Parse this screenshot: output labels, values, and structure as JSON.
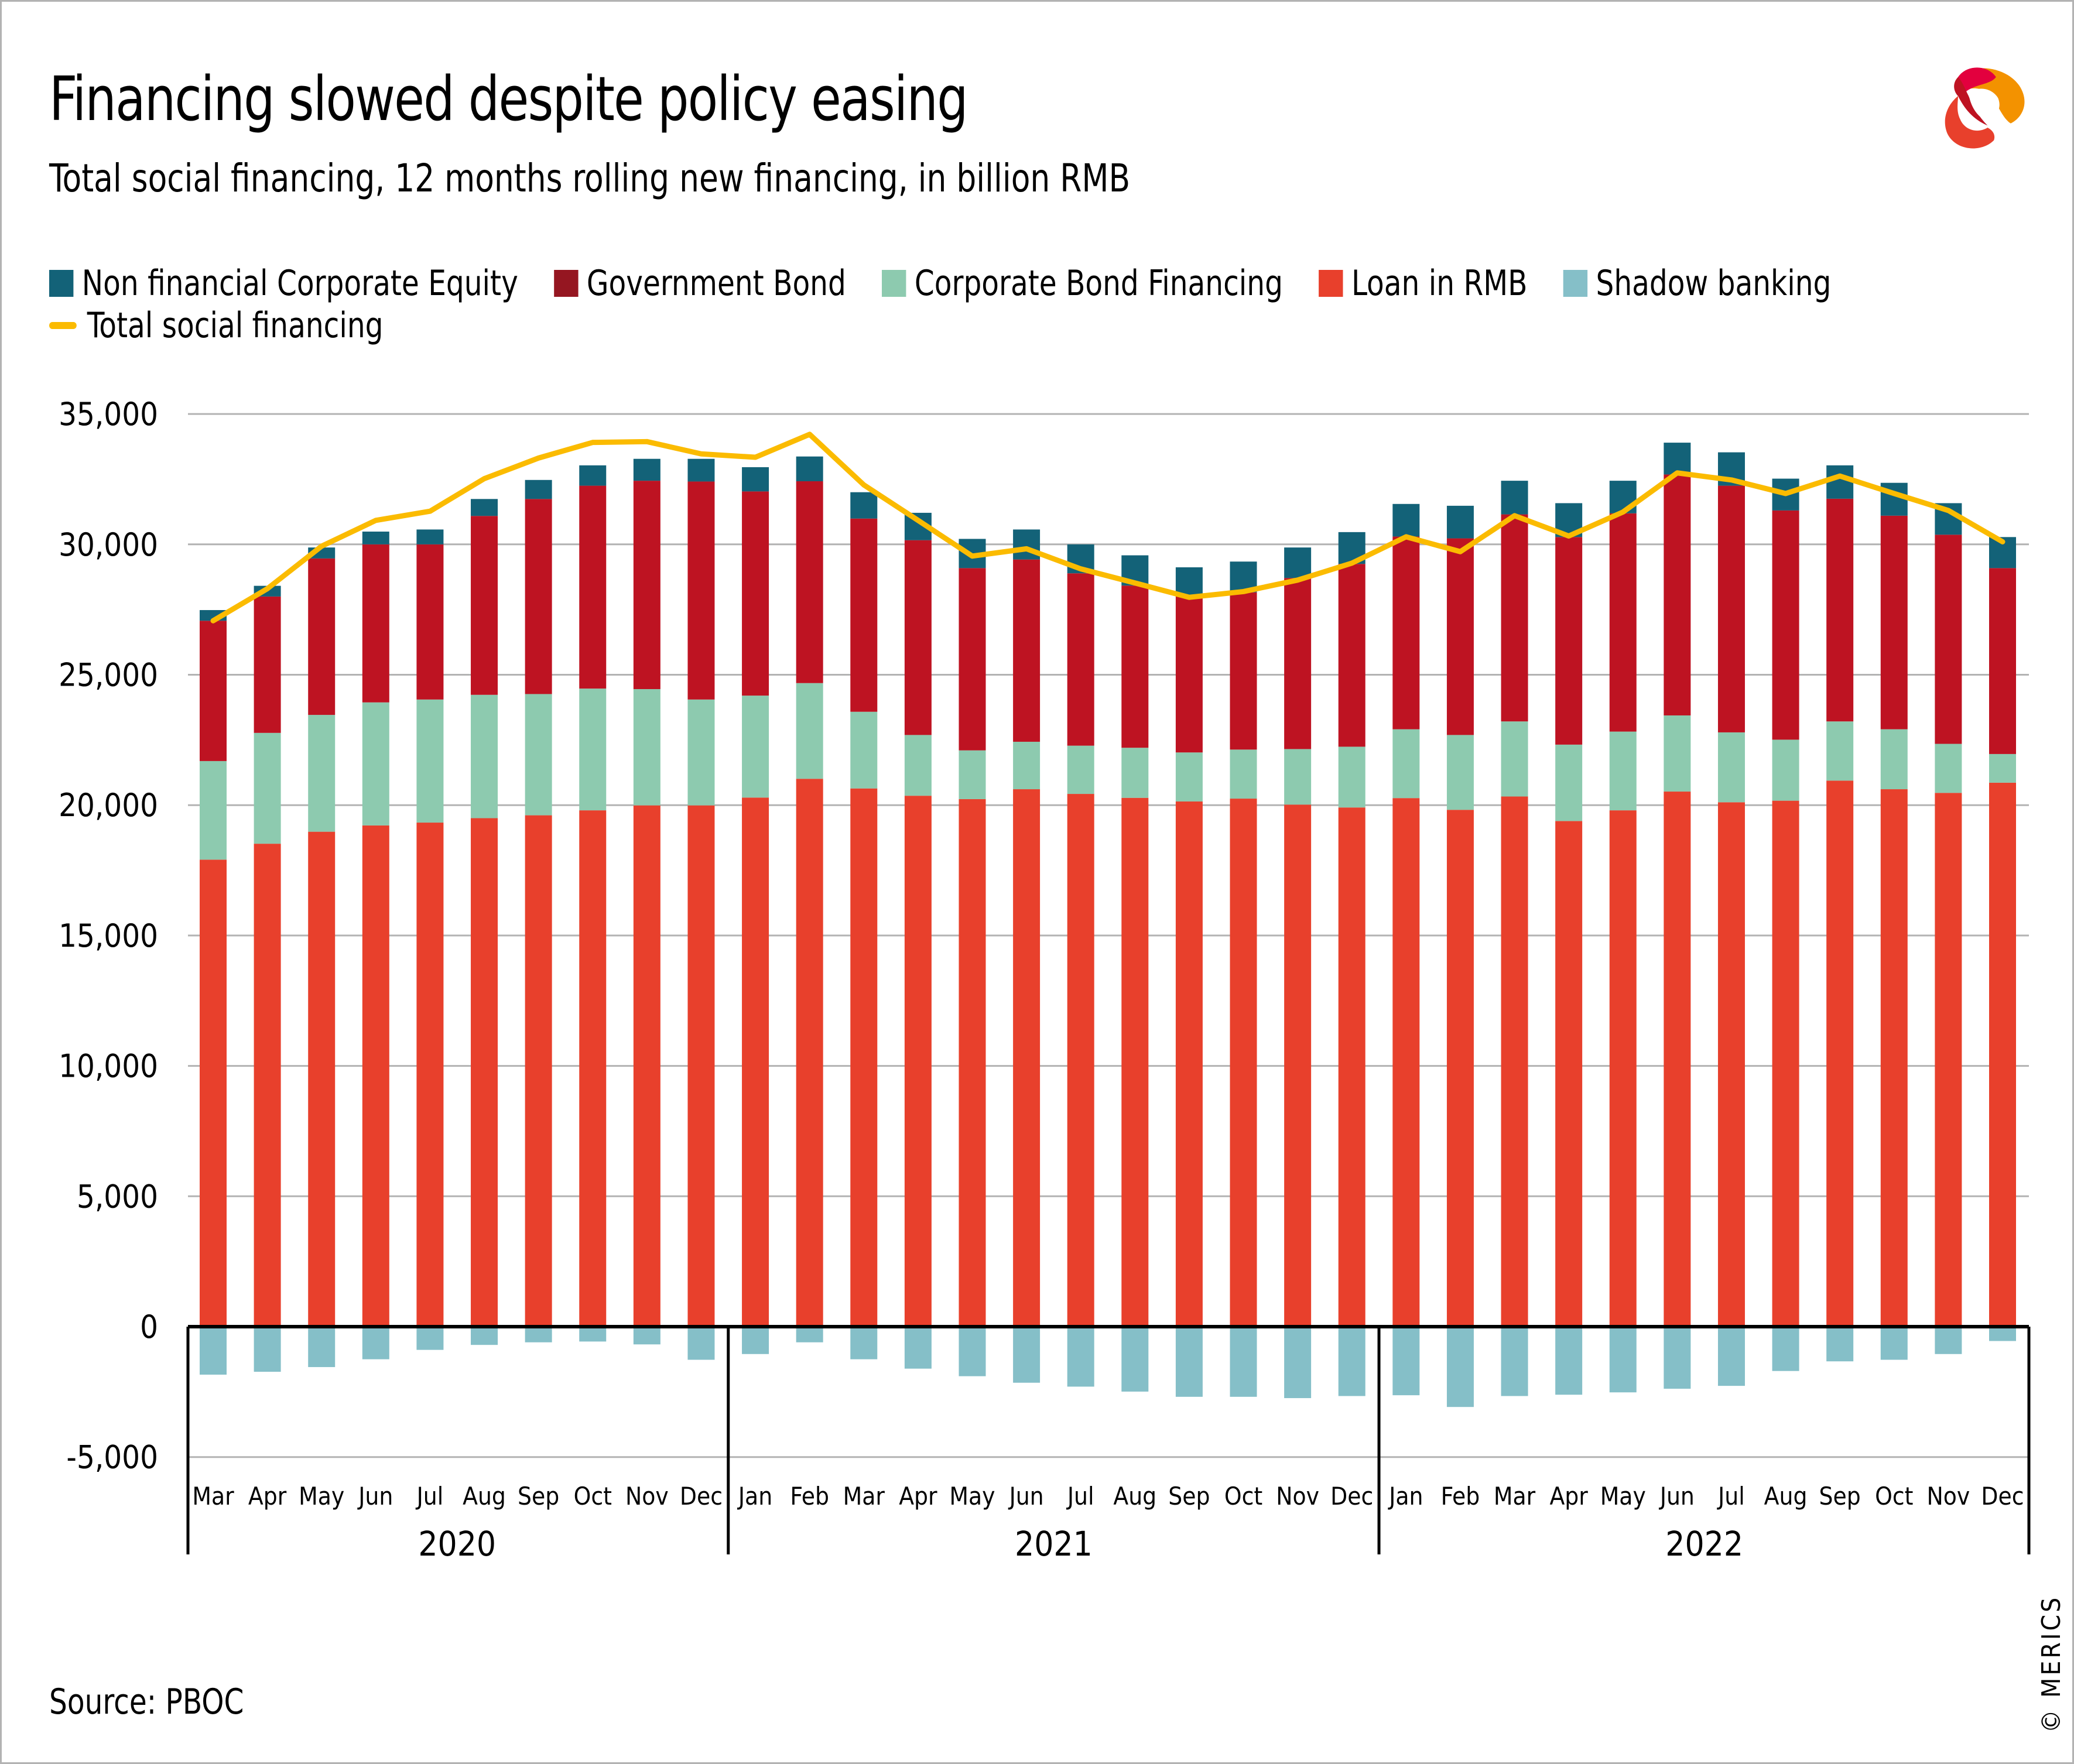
{
  "title": "Financing slowed despite policy easing",
  "subtitle": "Total social financing, 12 months rolling new financing, in billion RMB",
  "source": "Source: PBOC",
  "copyright": "© MERICS",
  "logo": "merics-logo-icon",
  "legend": [
    {
      "key": "equity",
      "label": "Non financial Corporate Equity",
      "color": "#136278",
      "type": "bar"
    },
    {
      "key": "gov",
      "label": "Government Bond",
      "color": "#951621",
      "type": "bar"
    },
    {
      "key": "corp",
      "label": "Corporate Bond Financing",
      "color": "#8dcaaf",
      "type": "bar"
    },
    {
      "key": "loan",
      "label": "Loan in RMB",
      "color": "#e8402c",
      "type": "bar"
    },
    {
      "key": "shadow",
      "label": "Shadow banking",
      "color": "#85bfc8",
      "type": "bar"
    },
    {
      "key": "tsf",
      "label": "Total social financing",
      "color": "#fbbb00",
      "type": "line"
    }
  ],
  "colors": {
    "equity": "#136278",
    "gov": "#be1322",
    "corp": "#8dcaaf",
    "loan": "#e8402c",
    "shadow": "#85bfc8",
    "tsf": "#fbbb00",
    "grid": "#b3b3b3"
  },
  "chart_data": {
    "type": "bar",
    "stacked": true,
    "title": "Financing slowed despite policy easing",
    "subtitle": "Total social financing, 12 months rolling new financing, in billion RMB",
    "xlabel": "",
    "ylabel": "",
    "ylim": [
      -5000,
      35000
    ],
    "yticks": [
      35000,
      30000,
      25000,
      20000,
      15000,
      10000,
      5000,
      0,
      -5000
    ],
    "ytick_labels": [
      "35,000",
      "30,000",
      "25,000",
      "20,000",
      "15,000",
      "10,000",
      "5,000",
      "0",
      "-5,000"
    ],
    "grid": true,
    "legend_position": "top-left",
    "years": [
      {
        "label": "2020",
        "start": 0,
        "end": 9
      },
      {
        "label": "2021",
        "start": 10,
        "end": 21
      },
      {
        "label": "2022",
        "start": 22,
        "end": 33
      }
    ],
    "categories": [
      "Mar",
      "Apr",
      "May",
      "Jun",
      "Jul",
      "Aug",
      "Sep",
      "Oct",
      "Nov",
      "Dec",
      "Jan",
      "Feb",
      "Mar",
      "Apr",
      "May",
      "Jun",
      "Jul",
      "Aug",
      "Sep",
      "Oct",
      "Nov",
      "Dec",
      "Jan",
      "Feb",
      "Mar",
      "Apr",
      "May",
      "Jun",
      "Jul",
      "Aug",
      "Sep",
      "Oct",
      "Nov",
      "Dec"
    ],
    "series": [
      {
        "name": "Loan in RMB",
        "key": "loan",
        "type": "bar",
        "values": [
          17910,
          18520,
          18980,
          19220,
          19330,
          19500,
          19610,
          19800,
          19990,
          19990,
          20290,
          21010,
          20640,
          20360,
          20230,
          20610,
          20430,
          20280,
          20140,
          20250,
          20020,
          19910,
          20270,
          19820,
          20330,
          19390,
          19800,
          20520,
          20110,
          20170,
          20940,
          20610,
          20470,
          20860
        ]
      },
      {
        "name": "Corporate Bond Financing",
        "key": "corp",
        "type": "bar",
        "values": [
          3780,
          4250,
          4480,
          4720,
          4720,
          4730,
          4650,
          4670,
          4460,
          4060,
          3910,
          3670,
          2940,
          2330,
          1870,
          1820,
          1850,
          1920,
          1880,
          1880,
          2130,
          2330,
          2640,
          2870,
          2880,
          2930,
          3020,
          2920,
          2680,
          2340,
          2270,
          2300,
          1880,
          1100
        ]
      },
      {
        "name": "Government Bond",
        "key": "gov",
        "type": "bar",
        "values": [
          5380,
          5230,
          6000,
          6060,
          5950,
          6860,
          7480,
          7780,
          7990,
          8360,
          7830,
          7740,
          7410,
          7470,
          6990,
          6990,
          6610,
          6220,
          5990,
          6030,
          6560,
          7010,
          7390,
          7540,
          7940,
          7960,
          8370,
          9240,
          9460,
          8790,
          8540,
          8190,
          8020,
          7130
        ]
      },
      {
        "name": "Non financial Corporate Equity",
        "key": "equity",
        "type": "bar",
        "values": [
          410,
          410,
          420,
          490,
          570,
          650,
          730,
          780,
          840,
          870,
          930,
          950,
          1010,
          1050,
          1120,
          1150,
          1110,
          1160,
          1110,
          1180,
          1170,
          1220,
          1250,
          1250,
          1290,
          1300,
          1250,
          1220,
          1280,
          1220,
          1280,
          1260,
          1210,
          1190
        ]
      },
      {
        "name": "Shadow banking",
        "key": "shadow",
        "type": "bar",
        "values": [
          -1840,
          -1730,
          -1550,
          -1250,
          -890,
          -700,
          -600,
          -570,
          -680,
          -1270,
          -1050,
          -600,
          -1250,
          -1610,
          -1900,
          -2150,
          -2300,
          -2490,
          -2690,
          -2690,
          -2740,
          -2660,
          -2630,
          -3080,
          -2660,
          -2610,
          -2520,
          -2380,
          -2270,
          -1700,
          -1330,
          -1270,
          -1050,
          -550
        ]
      },
      {
        "name": "Total social financing",
        "key": "tsf",
        "type": "line",
        "values": [
          27070,
          28300,
          29930,
          30920,
          31270,
          32520,
          33310,
          33910,
          33940,
          33470,
          33340,
          34220,
          32280,
          30920,
          29550,
          29830,
          29060,
          28520,
          27970,
          28190,
          28630,
          29280,
          30290,
          29720,
          31100,
          30320,
          31240,
          32740,
          32470,
          31950,
          32620,
          31950,
          31300,
          30100
        ]
      }
    ]
  }
}
